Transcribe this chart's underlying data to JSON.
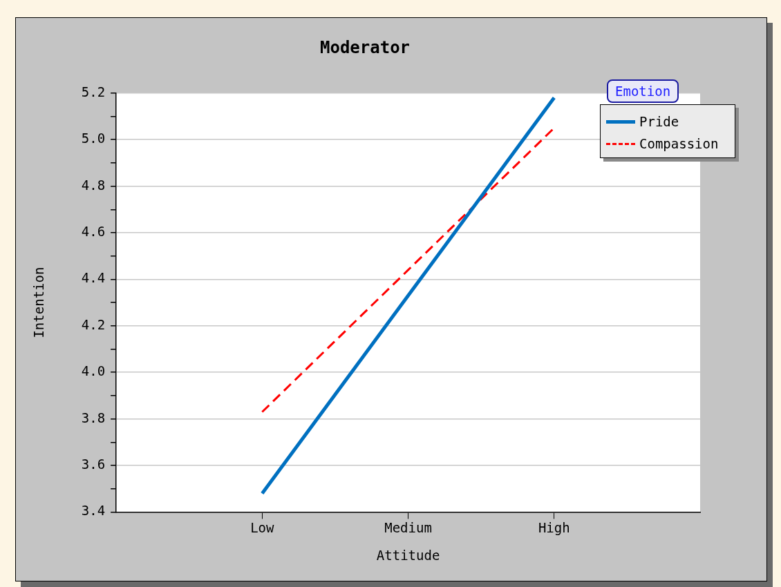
{
  "chart_data": {
    "type": "line",
    "title": "Moderator",
    "xlabel": "Attitude",
    "ylabel": "Intention",
    "legend_title": "Emotion",
    "legend": "top right",
    "grid": "y",
    "marker": "none",
    "categories": [
      "Low",
      "Medium",
      "High"
    ],
    "ylim": [
      3.4,
      5.2
    ],
    "yticks": [
      3.4,
      {
        "value": 3.5,
        "label": null
      },
      3.6,
      {
        "value": 3.7,
        "label": null
      },
      3.8,
      {
        "value": 3.9,
        "label": null
      },
      {
        "value": 4,
        "label": "4.0"
      },
      {
        "value": 4.1,
        "label": null
      },
      4.2,
      {
        "value": 4.3,
        "label": null
      },
      4.4,
      {
        "value": 4.5,
        "label": null
      },
      4.6,
      {
        "value": 4.7,
        "label": null
      },
      4.8,
      {
        "value": 4.9,
        "label": null
      },
      {
        "value": 5,
        "label": "5.0"
      },
      {
        "value": 5.1,
        "label": null
      },
      5.2
    ],
    "series": [
      {
        "name": "Pride",
        "color": "#0070c0",
        "line_style": "solid",
        "values": [
          3.48,
          4.33,
          5.18
        ]
      },
      {
        "name": "Compassion",
        "color": "#ff0000",
        "line_style": "dashed",
        "values": [
          3.83,
          4.44,
          5.05
        ]
      }
    ]
  }
}
